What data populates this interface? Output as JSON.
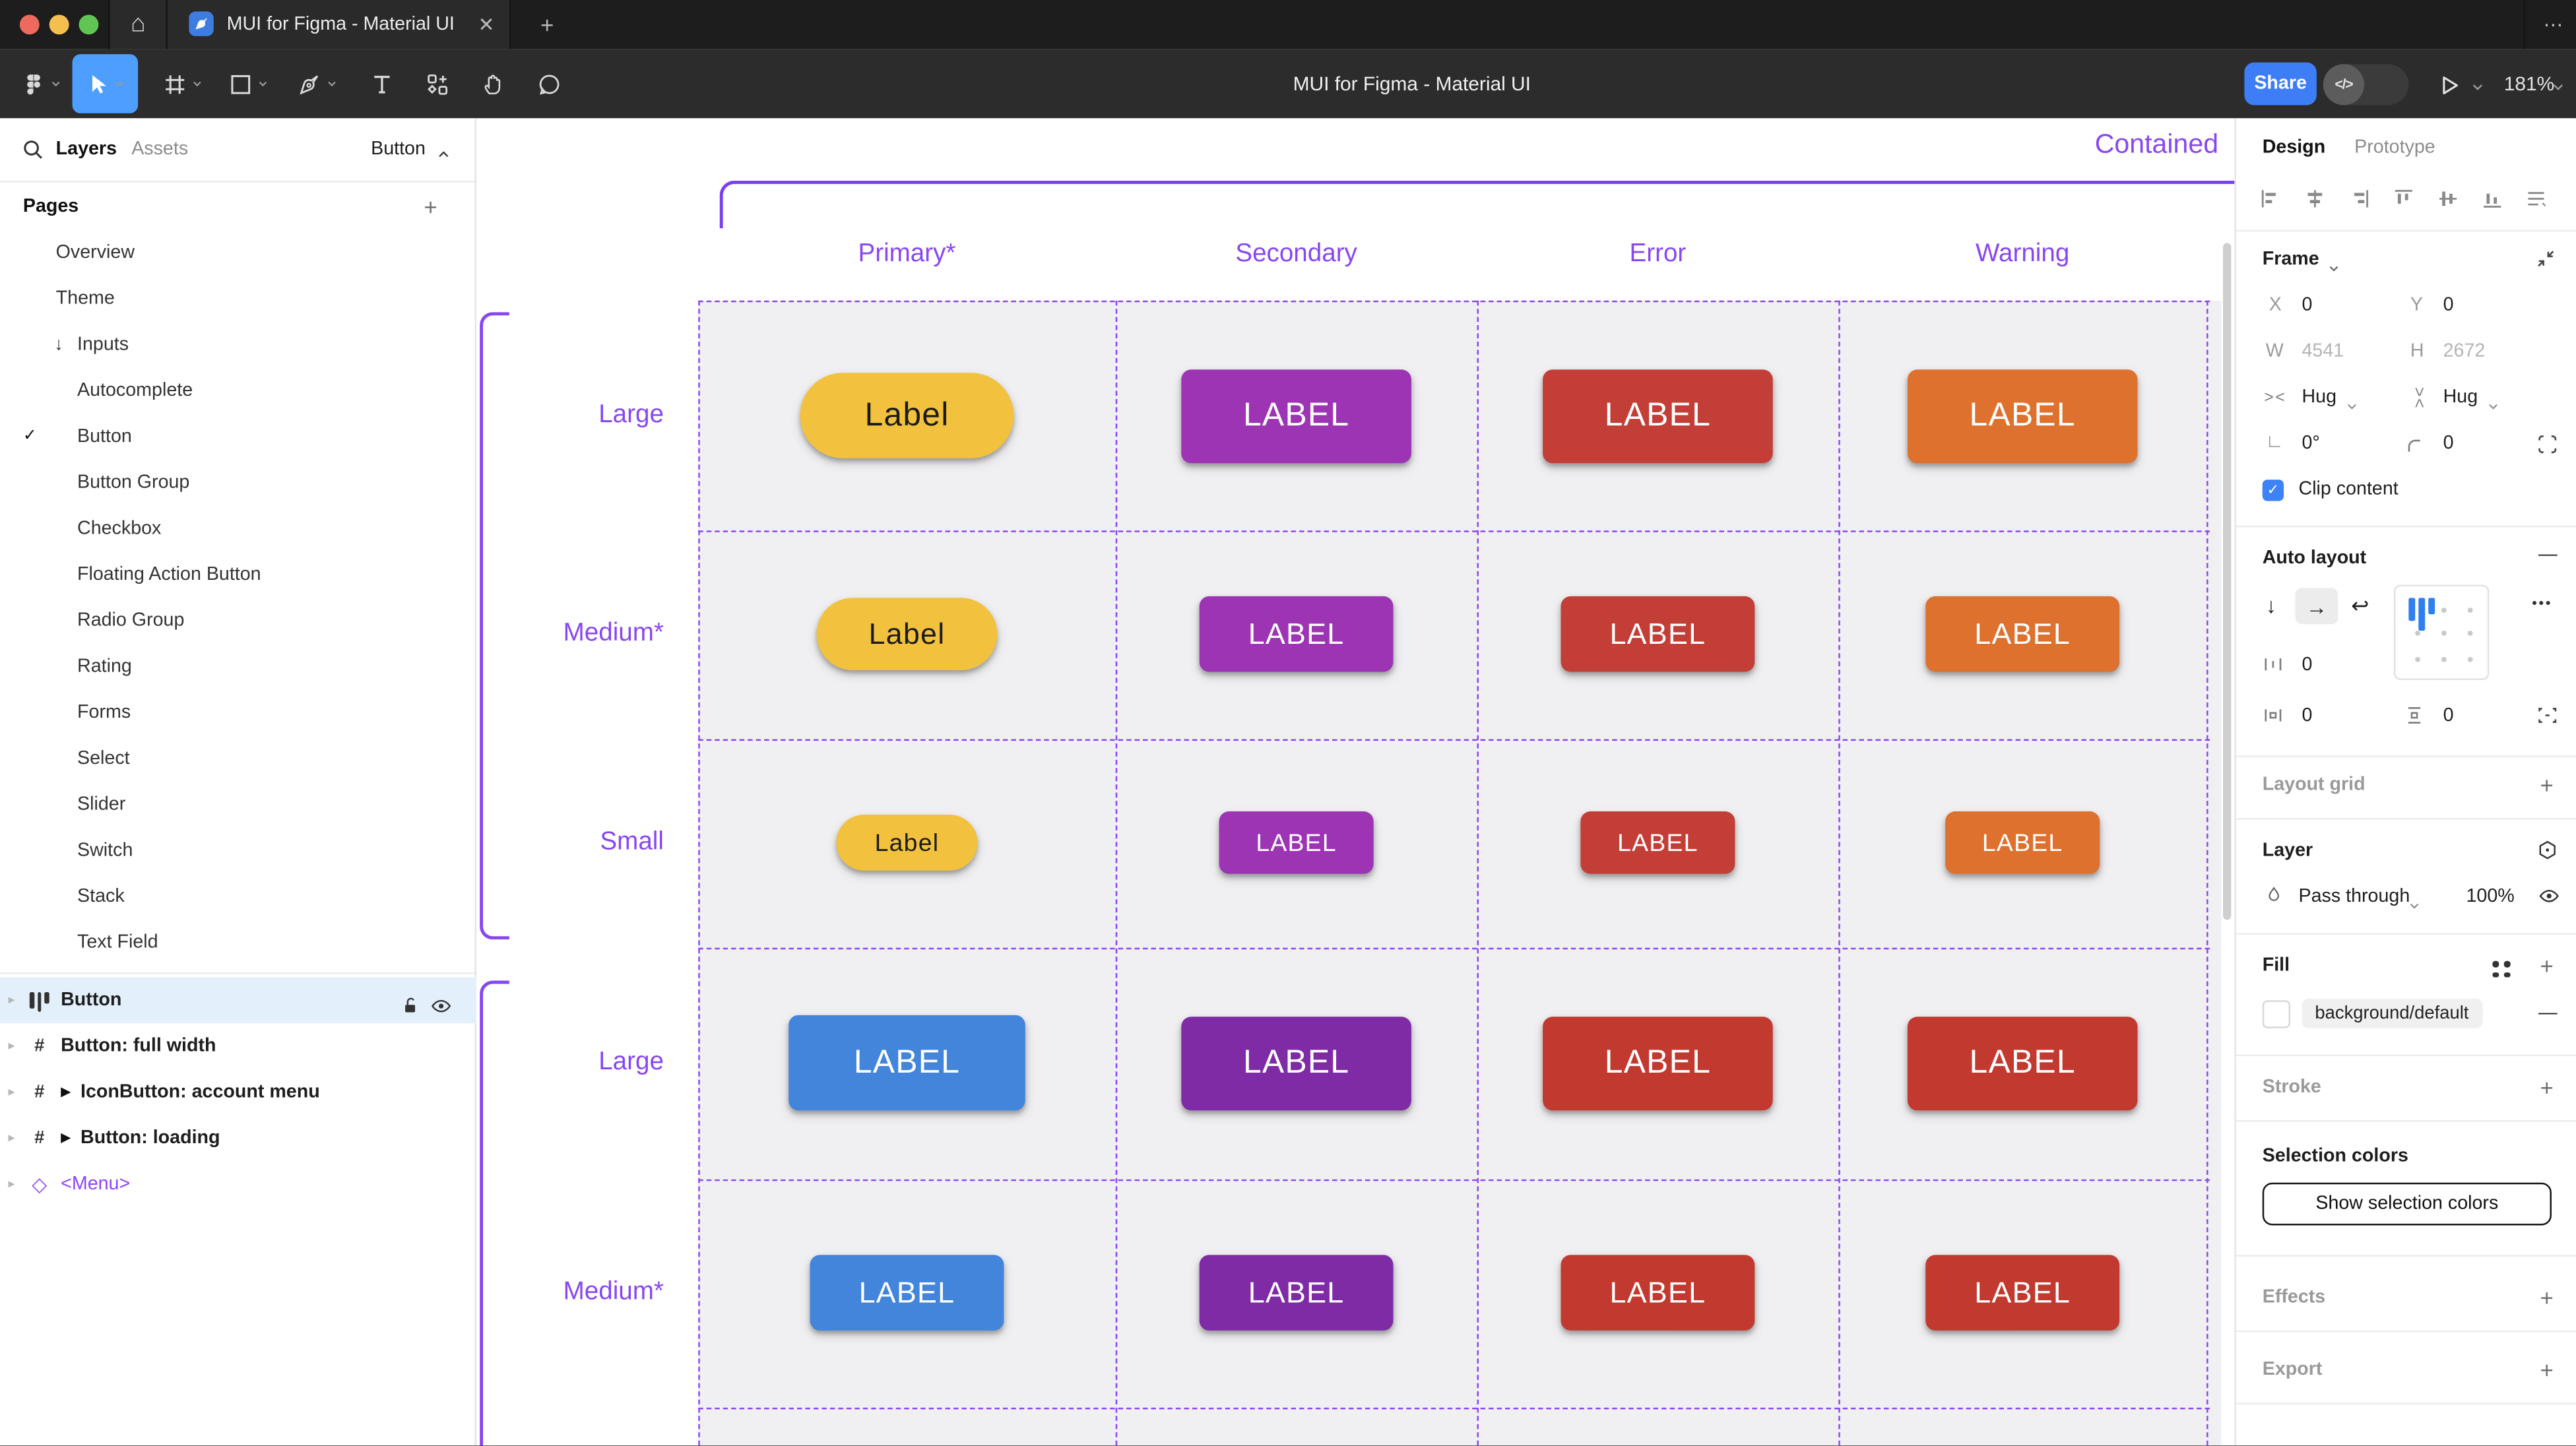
{
  "window": {
    "tab_title": "MUI for Figma - Material UI",
    "close_label": "✕",
    "new_tab_label": "+",
    "more_label": "⋯",
    "home_label": "⌂",
    "traffic_colors": {
      "red": "#ec6a5e",
      "yellow": "#f4bf4f",
      "green": "#61c554"
    }
  },
  "toolbar": {
    "document_title": "MUI for Figma - Material UI",
    "tools": [
      {
        "name": "figma-menu",
        "chevron": true,
        "selected": false
      },
      {
        "name": "move-tool",
        "chevron": true,
        "selected": true
      },
      {
        "name": "frame-tool",
        "chevron": true,
        "selected": false
      },
      {
        "name": "shape-tool",
        "chevron": true,
        "selected": false
      },
      {
        "name": "pen-tool",
        "chevron": true,
        "selected": false
      },
      {
        "name": "text-tool",
        "chevron": false,
        "selected": false
      },
      {
        "name": "resources-tool",
        "chevron": false,
        "selected": false
      },
      {
        "name": "hand-tool",
        "chevron": false,
        "selected": false
      },
      {
        "name": "comment-tool",
        "chevron": false,
        "selected": false
      }
    ],
    "share_label": "Share",
    "dev_toggle_label": "</>",
    "zoom_level": "181%"
  },
  "sidebar": {
    "tabs": {
      "layers": "Layers",
      "assets": "Assets"
    },
    "component_selector": "Button",
    "pages_header": "Pages",
    "add_page_label": "+",
    "pages": [
      {
        "label": "Overview",
        "indent": 0,
        "checked": false,
        "arrow": ""
      },
      {
        "label": "Theme",
        "indent": 0,
        "checked": false,
        "arrow": ""
      },
      {
        "label": "Inputs",
        "indent": 0,
        "checked": false,
        "arrow": "↓"
      },
      {
        "label": "Autocomplete",
        "indent": 1,
        "checked": false,
        "arrow": ""
      },
      {
        "label": "Button",
        "indent": 1,
        "checked": true,
        "arrow": ""
      },
      {
        "label": "Button Group",
        "indent": 1,
        "checked": false,
        "arrow": ""
      },
      {
        "label": "Checkbox",
        "indent": 1,
        "checked": false,
        "arrow": ""
      },
      {
        "label": "Floating Action Button",
        "indent": 1,
        "checked": false,
        "arrow": ""
      },
      {
        "label": "Radio Group",
        "indent": 1,
        "checked": false,
        "arrow": ""
      },
      {
        "label": "Rating",
        "indent": 1,
        "checked": false,
        "arrow": ""
      },
      {
        "label": "Forms",
        "indent": 1,
        "checked": false,
        "arrow": ""
      },
      {
        "label": "Select",
        "indent": 1,
        "checked": false,
        "arrow": ""
      },
      {
        "label": "Slider",
        "indent": 1,
        "checked": false,
        "arrow": ""
      },
      {
        "label": "Switch",
        "indent": 1,
        "checked": false,
        "arrow": ""
      },
      {
        "label": "Stack",
        "indent": 1,
        "checked": false,
        "arrow": ""
      },
      {
        "label": "Text Field",
        "indent": 1,
        "checked": false,
        "arrow": ""
      }
    ],
    "layers": [
      {
        "label": "Button",
        "icon": "auto-layout",
        "selected": true,
        "bold": true,
        "flow": false,
        "purple": false
      },
      {
        "label": "Button: full width",
        "icon": "frame",
        "selected": false,
        "bold": true,
        "flow": false,
        "purple": false
      },
      {
        "label": "IconButton: account menu",
        "icon": "frame",
        "selected": false,
        "bold": true,
        "flow": true,
        "purple": false
      },
      {
        "label": "Button: loading",
        "icon": "frame",
        "selected": false,
        "bold": true,
        "flow": true,
        "purple": false
      },
      {
        "label": "<Menu>",
        "icon": "instance",
        "selected": false,
        "bold": false,
        "flow": false,
        "purple": true
      }
    ]
  },
  "canvas": {
    "frame_title": "Contained",
    "columns": [
      "Primary*",
      "Secondary",
      "Error",
      "Warning"
    ],
    "row_labels": [
      "Large",
      "Medium*",
      "Small",
      "Large",
      "Medium*"
    ],
    "annotation_color": "#8747f1",
    "button_sizes": {
      "pill-lg": [
        130,
        52,
        20
      ],
      "rect-lg": [
        140,
        57,
        20
      ],
      "pill-md": [
        110,
        44,
        18
      ],
      "rect-md": [
        118,
        46,
        18
      ],
      "pill-sm": [
        86,
        34,
        15
      ],
      "rect-sm": [
        94,
        38,
        15
      ],
      "rect-lg-wide": [
        144,
        58,
        20
      ]
    },
    "buttons": [
      [
        {
          "text": "Label",
          "bg": "#f2c23e",
          "fg": "#1c1c1c",
          "shape": "pill",
          "size": "pill-lg"
        },
        {
          "text": "LABEL",
          "bg": "#9c34b4",
          "fg": "#ffffff",
          "shape": "rect",
          "size": "rect-lg"
        },
        {
          "text": "LABEL",
          "bg": "#c33e37",
          "fg": "#ffffff",
          "shape": "rect",
          "size": "rect-lg"
        },
        {
          "text": "LABEL",
          "bg": "#dd712d",
          "fg": "#ffffff",
          "shape": "rect",
          "size": "rect-lg"
        }
      ],
      [
        {
          "text": "Label",
          "bg": "#f2c23e",
          "fg": "#1c1c1c",
          "shape": "pill",
          "size": "pill-md"
        },
        {
          "text": "LABEL",
          "bg": "#9c34b4",
          "fg": "#ffffff",
          "shape": "rect",
          "size": "rect-md"
        },
        {
          "text": "LABEL",
          "bg": "#c33e37",
          "fg": "#ffffff",
          "shape": "rect",
          "size": "rect-md"
        },
        {
          "text": "LABEL",
          "bg": "#dd712d",
          "fg": "#ffffff",
          "shape": "rect",
          "size": "rect-md"
        }
      ],
      [
        {
          "text": "Label",
          "bg": "#f2c23e",
          "fg": "#1c1c1c",
          "shape": "pill",
          "size": "pill-sm"
        },
        {
          "text": "LABEL",
          "bg": "#9c34b4",
          "fg": "#ffffff",
          "shape": "rect",
          "size": "rect-sm"
        },
        {
          "text": "LABEL",
          "bg": "#c33e37",
          "fg": "#ffffff",
          "shape": "rect",
          "size": "rect-sm"
        },
        {
          "text": "LABEL",
          "bg": "#dd712d",
          "fg": "#ffffff",
          "shape": "rect",
          "size": "rect-sm"
        }
      ],
      [
        {
          "text": "LABEL",
          "bg": "#4285db",
          "fg": "#ffffff",
          "shape": "rect",
          "size": "rect-lg-wide"
        },
        {
          "text": "LABEL",
          "bg": "#7e2ba5",
          "fg": "#ffffff",
          "shape": "rect",
          "size": "rect-lg"
        },
        {
          "text": "LABEL",
          "bg": "#c2392f",
          "fg": "#ffffff",
          "shape": "rect",
          "size": "rect-lg"
        },
        {
          "text": "LABEL",
          "bg": "#c2392f",
          "fg": "#ffffff",
          "shape": "rect",
          "size": "rect-lg"
        }
      ],
      [
        {
          "text": "LABEL",
          "bg": "#4285db",
          "fg": "#ffffff",
          "shape": "rect",
          "size": "rect-md"
        },
        {
          "text": "LABEL",
          "bg": "#7e2ba5",
          "fg": "#ffffff",
          "shape": "rect",
          "size": "rect-md"
        },
        {
          "text": "LABEL",
          "bg": "#c2392f",
          "fg": "#ffffff",
          "shape": "rect",
          "size": "rect-md"
        },
        {
          "text": "LABEL",
          "bg": "#c2392f",
          "fg": "#ffffff",
          "shape": "rect",
          "size": "rect-md"
        }
      ]
    ]
  },
  "inspector": {
    "tabs": {
      "design": "Design",
      "prototype": "Prototype"
    },
    "frame": {
      "header": "Frame",
      "x_label": "X",
      "x_value": "0",
      "y_label": "Y",
      "y_value": "0",
      "w_label": "W",
      "w_value": "4541",
      "h_label": "H",
      "h_value": "2672",
      "hug_h": "Hug",
      "hug_v": "Hug",
      "rotation": "0°",
      "radius": "0",
      "clip_label": "Clip content"
    },
    "auto_layout": {
      "header": "Auto layout",
      "remove_label": "—",
      "gap_value": "0",
      "pad_h_value": "0",
      "pad_v_value": "0",
      "more_label": "•••"
    },
    "layout_grid": {
      "header": "Layout grid",
      "add_label": "+"
    },
    "layer": {
      "header": "Layer",
      "blend_mode": "Pass through",
      "opacity": "100%"
    },
    "fill": {
      "header": "Fill",
      "token": "background/default",
      "remove_label": "—",
      "add_label": "+"
    },
    "stroke": {
      "header": "Stroke",
      "add_label": "+"
    },
    "selection_colors": {
      "header": "Selection colors",
      "button_label": "Show selection colors"
    },
    "effects": {
      "header": "Effects",
      "add_label": "+"
    },
    "export": {
      "header": "Export",
      "add_label": "+"
    }
  }
}
